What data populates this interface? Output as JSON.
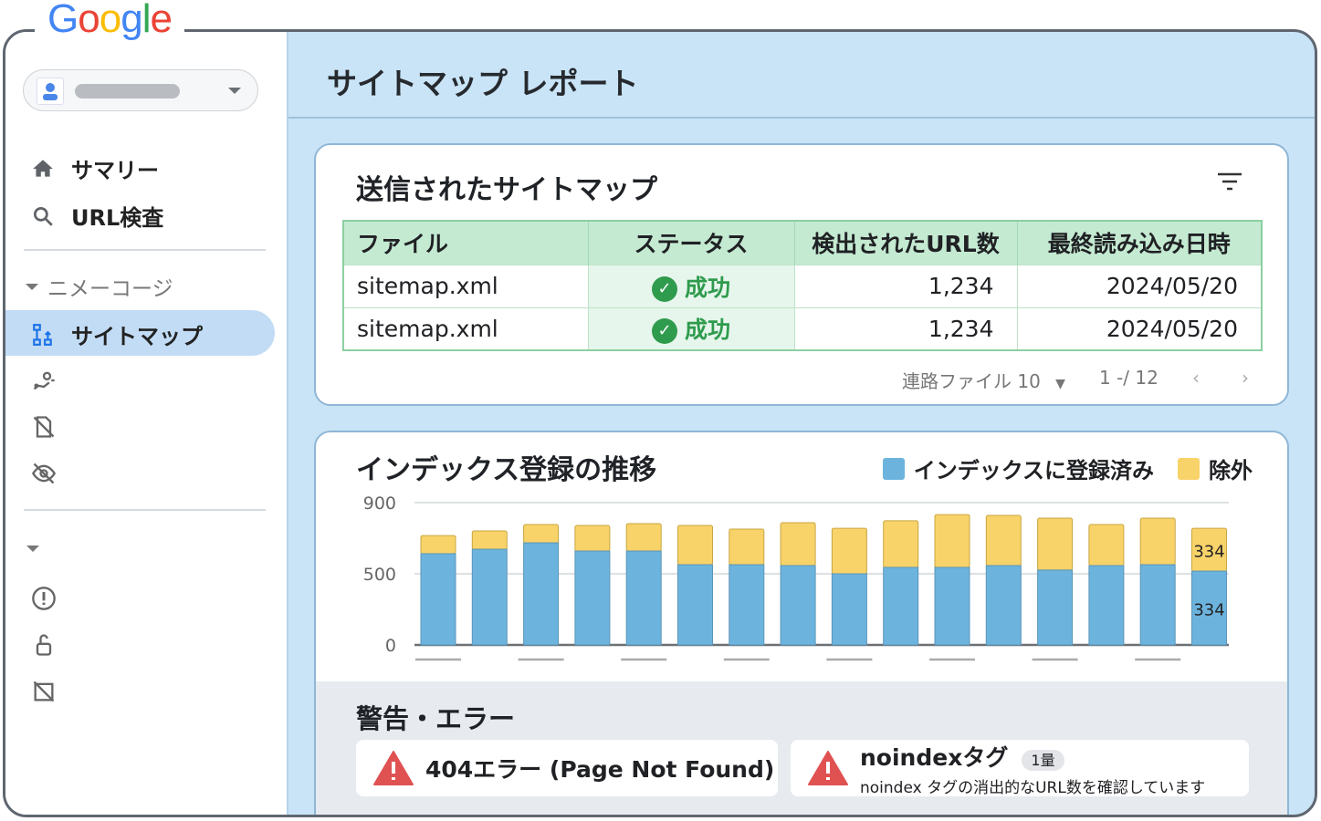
{
  "brand": {
    "logo": "Google",
    "colors": [
      "#4285F4",
      "#EA4335",
      "#FBBC05",
      "#4285F4",
      "#34A853",
      "#EA4335"
    ]
  },
  "sidebar": {
    "account_dropdown": {
      "icon": "person-icon"
    },
    "items": [
      {
        "label": "サマリー",
        "icon": "home-icon"
      },
      {
        "label": "URL検査",
        "icon": "search-icon"
      }
    ],
    "section_label": "ニメーコージ",
    "active_item": {
      "label": "サイトマップ",
      "icon": "sitemap-icon"
    },
    "icons": [
      "crawl-icon",
      "removal-icon",
      "hidden-icon",
      "expand-icon",
      "info-icon",
      "security-icon",
      "blocked-icon"
    ]
  },
  "header": {
    "title": "サイトマップ レポート"
  },
  "sitemaps": {
    "title": "送信されたサイトマップ",
    "columns": [
      "ファイル",
      "ステータス",
      "検出されたURL数",
      "最終読み込み日時"
    ],
    "rows": [
      {
        "file": "sitemap.xml",
        "status": "成功",
        "urls": "1,234",
        "date": "2024/05/20"
      },
      {
        "file": "sitemap.xml",
        "status": "成功",
        "urls": "1,234",
        "date": "2024/05/20"
      }
    ],
    "rows_label": "連路ファイル",
    "rows_value": "10",
    "range": "1 -/ 12"
  },
  "chart_data": {
    "type": "bar",
    "stacked": true,
    "title": "インデックス登録の推移",
    "yticks": [
      0,
      500,
      900
    ],
    "ylim": [
      0,
      900
    ],
    "grid": true,
    "legend": "top-right",
    "series": [
      {
        "name": "インデックスに登録済み",
        "color": "#6cb4de",
        "values": [
          613,
          638,
          674,
          628,
          628,
          551,
          551,
          546,
          500,
          536,
          536,
          546,
          521,
          546,
          551,
          515
        ]
      },
      {
        "name": "除外",
        "color": "#f8d36a",
        "values": [
          102,
          103,
          103,
          144,
          154,
          221,
          200,
          241,
          256,
          262,
          297,
          282,
          292,
          231,
          262,
          241
        ]
      }
    ],
    "data_labels": [
      "334",
      "334"
    ]
  },
  "alerts": {
    "title": "警告・エラー",
    "items": [
      {
        "title": "404エラー (Page Not Found)"
      },
      {
        "title": "noindexタグ",
        "badge": "1量",
        "desc": "noindex タグの消出的なURL数を確認しています"
      }
    ]
  }
}
